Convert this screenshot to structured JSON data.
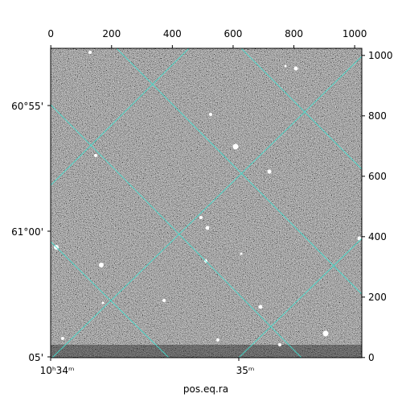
{
  "chart_data": {
    "type": "image",
    "xlabel": "pos.eq.ra",
    "xlim": [
      -0.5,
      1023.5
    ],
    "xticks": [
      0,
      200,
      400,
      600,
      800,
      1000
    ],
    "ylim": [
      -0.5,
      1023.5
    ],
    "yticks": [
      0,
      200,
      400,
      600,
      800,
      1000
    ],
    "ra_ticks": [
      "10ʰ34ᵐ",
      "35ᵐ"
    ],
    "dec_ticks": [
      "60°55'",
      "61°00'",
      "05'"
    ],
    "grid": true,
    "grid_color": "#40e0d0"
  }
}
